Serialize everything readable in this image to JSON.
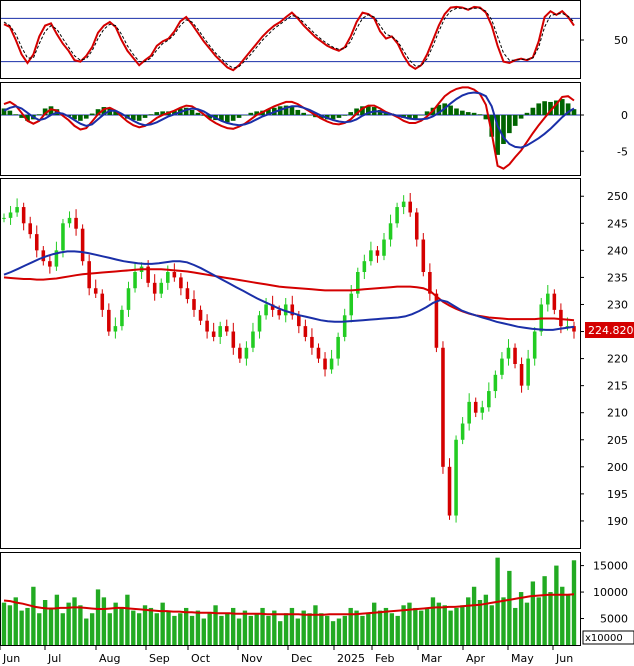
{
  "chart_data": [
    {
      "type": "line",
      "panel": "stochastic",
      "y_ticks": [
        "50"
      ],
      "ylim": [
        0,
        100
      ],
      "bands": [
        80,
        20
      ],
      "series": [
        {
          "color": "#d40000",
          "dash": false,
          "values": [
            72,
            68,
            50,
            30,
            18,
            30,
            55,
            70,
            73,
            58,
            45,
            35,
            22,
            20,
            28,
            40,
            60,
            70,
            75,
            68,
            50,
            35,
            25,
            15,
            22,
            28,
            42,
            48,
            52,
            62,
            76,
            82,
            72,
            60,
            48,
            38,
            28,
            20,
            12,
            8,
            15,
            25,
            35,
            45,
            55,
            63,
            70,
            75,
            82,
            88,
            80,
            70,
            62,
            54,
            48,
            42,
            38,
            35,
            40,
            55,
            75,
            88,
            86,
            80,
            62,
            52,
            55,
            45,
            28,
            15,
            10,
            15,
            30,
            50,
            70,
            86,
            95,
            96,
            95,
            92,
            96,
            95,
            88,
            70,
            42,
            20,
            18,
            22,
            24,
            22,
            26,
            48,
            82,
            90,
            85,
            90,
            82,
            70
          ]
        },
        {
          "color": "#000000",
          "dash": true,
          "values": [
            75,
            70,
            58,
            40,
            25,
            25,
            45,
            62,
            70,
            65,
            52,
            40,
            28,
            22,
            24,
            35,
            52,
            65,
            72,
            70,
            58,
            42,
            30,
            20,
            20,
            25,
            36,
            45,
            50,
            58,
            70,
            78,
            75,
            65,
            53,
            42,
            32,
            24,
            16,
            11,
            13,
            21,
            30,
            40,
            50,
            58,
            66,
            72,
            78,
            84,
            82,
            74,
            66,
            58,
            51,
            45,
            40,
            37,
            38,
            48,
            66,
            80,
            85,
            82,
            70,
            58,
            55,
            48,
            35,
            22,
            14,
            14,
            24,
            42,
            62,
            80,
            90,
            94,
            94,
            93,
            94,
            94,
            90,
            78,
            55,
            32,
            22,
            22,
            23,
            23,
            25,
            40,
            68,
            84,
            86,
            87,
            83,
            75
          ]
        }
      ]
    },
    {
      "type": "line",
      "panel": "macd",
      "y_ticks": [
        "0",
        "-5"
      ],
      "ylim": [
        -8,
        4
      ],
      "histogram": [
        0.9,
        0.6,
        0.1,
        -0.4,
        -0.8,
        -0.6,
        0.1,
        0.9,
        1.2,
        0.8,
        0.2,
        -0.2,
        -0.6,
        -0.8,
        -0.5,
        0.2,
        0.8,
        1.1,
        1.0,
        0.6,
        -0.1,
        -0.5,
        -0.7,
        -0.8,
        -0.4,
        0.1,
        0.4,
        0.5,
        0.5,
        0.6,
        0.9,
        1.0,
        0.7,
        0.3,
        -0.1,
        -0.5,
        -0.7,
        -0.8,
        -1.0,
        -0.8,
        -0.4,
        0.0,
        0.3,
        0.5,
        0.6,
        0.8,
        1.0,
        1.2,
        1.3,
        1.1,
        0.7,
        0.3,
        0.0,
        -0.3,
        -0.5,
        -0.6,
        -0.6,
        -0.4,
        -0.1,
        0.4,
        0.9,
        1.2,
        1.3,
        1.1,
        0.7,
        0.4,
        0.2,
        -0.1,
        -0.4,
        -0.6,
        -0.5,
        0.0,
        0.5,
        1.0,
        1.4,
        1.6,
        1.3,
        0.9,
        0.6,
        0.4,
        0.3,
        0.1,
        -0.6,
        -3.0,
        -5.5,
        -4.0,
        -2.5,
        -1.5,
        -0.5,
        0.3,
        1.0,
        1.6,
        1.9,
        1.8,
        2.0,
        2.2,
        1.6,
        0.8
      ],
      "series": [
        {
          "color": "#d40000",
          "values": [
            1.5,
            1.8,
            1.3,
            0.3,
            -0.8,
            -1.2,
            -0.8,
            0.2,
            0.8,
            0.6,
            -0.1,
            -0.7,
            -1.5,
            -2.0,
            -1.8,
            -0.9,
            0.1,
            0.8,
            1.0,
            0.6,
            -0.2,
            -0.9,
            -1.4,
            -1.7,
            -1.5,
            -1.0,
            -0.4,
            0.0,
            0.3,
            0.6,
            1.0,
            1.3,
            1.2,
            0.7,
            0.1,
            -0.6,
            -1.1,
            -1.5,
            -1.8,
            -1.9,
            -1.6,
            -1.2,
            -0.6,
            0.0,
            0.4,
            0.8,
            1.2,
            1.5,
            1.8,
            1.8,
            1.5,
            1.0,
            0.5,
            0.0,
            -0.5,
            -0.9,
            -1.2,
            -1.3,
            -1.1,
            -0.6,
            0.2,
            0.9,
            1.3,
            1.3,
            0.9,
            0.4,
            0.1,
            -0.3,
            -0.8,
            -1.1,
            -1.1,
            -0.8,
            -0.2,
            0.6,
            1.6,
            2.6,
            3.2,
            3.6,
            3.8,
            3.8,
            3.5,
            2.9,
            1.4,
            -2.5,
            -7.0,
            -7.4,
            -6.8,
            -5.8,
            -4.9,
            -3.7,
            -2.5,
            -1.4,
            -0.4,
            0.6,
            1.5,
            2.5,
            2.6,
            2.0
          ]
        },
        {
          "color": "#1a2fa8",
          "values": [
            0.6,
            1.0,
            1.2,
            0.9,
            0.3,
            -0.3,
            -0.7,
            -0.5,
            0.0,
            0.3,
            0.2,
            -0.2,
            -0.7,
            -1.2,
            -1.5,
            -1.3,
            -0.6,
            0.1,
            0.6,
            0.6,
            0.2,
            -0.3,
            -0.8,
            -1.2,
            -1.4,
            -1.3,
            -1.0,
            -0.6,
            -0.2,
            0.1,
            0.4,
            0.7,
            0.9,
            0.8,
            0.5,
            0.0,
            -0.4,
            -0.8,
            -1.1,
            -1.3,
            -1.4,
            -1.3,
            -1.0,
            -0.6,
            -0.2,
            0.1,
            0.4,
            0.7,
            1.0,
            1.2,
            1.2,
            1.0,
            0.7,
            0.3,
            -0.1,
            -0.4,
            -0.7,
            -0.9,
            -1.0,
            -0.9,
            -0.6,
            -0.1,
            0.3,
            0.5,
            0.5,
            0.3,
            0.1,
            -0.1,
            -0.3,
            -0.5,
            -0.6,
            -0.6,
            -0.5,
            -0.2,
            0.3,
            0.9,
            1.6,
            2.2,
            2.7,
            3.0,
            3.1,
            3.0,
            2.6,
            1.2,
            -1.5,
            -3.1,
            -4.0,
            -4.4,
            -4.5,
            -4.2,
            -3.7,
            -3.2,
            -2.6,
            -1.9,
            -1.1,
            -0.3,
            0.4,
            0.9
          ]
        }
      ]
    },
    {
      "type": "candlestick",
      "panel": "price",
      "y_ticks": [
        "250",
        "245",
        "240",
        "235",
        "230",
        "225",
        "220",
        "215",
        "210",
        "205",
        "200",
        "195",
        "190"
      ],
      "ylim": [
        185,
        253
      ],
      "last_price_label": "224.8200",
      "x_labels": [
        "Jun",
        "Jul",
        "Aug",
        "Sep",
        "Oct",
        "Nov",
        "Dec",
        "2025",
        "Feb",
        "Mar",
        "Apr",
        "May",
        "Jun"
      ],
      "close": [
        246,
        247,
        248,
        245,
        243,
        240,
        238,
        237,
        240,
        245,
        246,
        244,
        238,
        233,
        232,
        229,
        225,
        226,
        229,
        233,
        236,
        237,
        234,
        232,
        234,
        236,
        235,
        233,
        231,
        229,
        227,
        225,
        224,
        226,
        225,
        222,
        220,
        222,
        225,
        228,
        230,
        229,
        228,
        230,
        228,
        226,
        224,
        222,
        220,
        218,
        220,
        224,
        228,
        232,
        236,
        238,
        240,
        239,
        242,
        245,
        248,
        249,
        247,
        242,
        236,
        232,
        222,
        200,
        191,
        205,
        208,
        212,
        210,
        211,
        214,
        217,
        220,
        222,
        219,
        215,
        220,
        225,
        230,
        232,
        229,
        226,
        226,
        225
      ],
      "ma_red": [
        235,
        234.9,
        234.8,
        234.7,
        234.7,
        234.6,
        234.6,
        234.7,
        234.8,
        235,
        235.2,
        235.4,
        235.6,
        235.7,
        235.8,
        235.9,
        236,
        236.1,
        236.2,
        236.3,
        236.4,
        236.5,
        236.5,
        236.5,
        236.5,
        236.4,
        236.3,
        236.2,
        236.1,
        235.9,
        235.7,
        235.5,
        235.3,
        235.1,
        234.9,
        234.7,
        234.5,
        234.3,
        234.1,
        233.9,
        233.7,
        233.5,
        233.3,
        233.2,
        233.1,
        233.0,
        232.9,
        232.8,
        232.7,
        232.6,
        232.6,
        232.6,
        232.6,
        232.6,
        232.7,
        232.8,
        232.9,
        233,
        233.1,
        233.2,
        233.3,
        233.3,
        233.3,
        233.2,
        233,
        232.5,
        231.5,
        230.5,
        229.8,
        229.2,
        228.7,
        228.3,
        228,
        227.8,
        227.6,
        227.5,
        227.4,
        227.3,
        227.3,
        227.3,
        227.3,
        227.3,
        227.4,
        227.4,
        227.4,
        227.3,
        227.2,
        227.1
      ],
      "ma_blue": [
        235.5,
        236.0,
        236.6,
        237.2,
        237.8,
        238.4,
        238.9,
        239.3,
        239.6,
        239.8,
        239.8,
        239.7,
        239.5,
        239.2,
        238.9,
        238.6,
        238.3,
        238.0,
        237.8,
        237.6,
        237.5,
        237.5,
        237.6,
        237.8,
        238.0,
        238.0,
        237.8,
        237.3,
        236.7,
        236.0,
        235.3,
        234.6,
        233.9,
        233.2,
        232.5,
        231.8,
        231.1,
        230.5,
        229.9,
        229.3,
        228.8,
        228.4,
        228.0,
        227.7,
        227.4,
        227.1,
        226.9,
        226.8,
        226.8,
        226.9,
        227.0,
        227.1,
        227.2,
        227.3,
        227.4,
        227.5,
        227.6,
        227.8,
        228.2,
        228.8,
        229.5,
        230.3,
        230.8,
        230.5,
        229.7,
        228.9,
        228.4,
        228.0,
        227.6,
        227.2,
        226.8,
        226.5,
        226.2,
        225.9,
        225.7,
        225.5,
        225.4,
        225.3,
        225.3,
        225.5,
        225.7,
        225.9
      ]
    },
    {
      "type": "bar",
      "panel": "volume",
      "y_ticks": [
        "15000",
        "10000",
        "5000"
      ],
      "unit_label": "x10000",
      "ylim": [
        0,
        17000
      ],
      "values": [
        8000,
        7500,
        9000,
        6500,
        7000,
        11000,
        6000,
        8500,
        7000,
        9500,
        6000,
        8000,
        9000,
        7500,
        5000,
        6000,
        10500,
        9000,
        6000,
        8000,
        7000,
        9500,
        6500,
        6000,
        7500,
        7000,
        6000,
        8000,
        6500,
        5500,
        6000,
        7000,
        5500,
        6500,
        5000,
        6000,
        7500,
        5500,
        6000,
        7000,
        5000,
        6500,
        5500,
        6000,
        7000,
        5500,
        6500,
        4500,
        6000,
        7000,
        5000,
        6500,
        6000,
        7500,
        6000,
        5500,
        4500,
        5000,
        5500,
        7000,
        6500,
        5500,
        6000,
        8000,
        6500,
        7000,
        6000,
        5500,
        7500,
        8000,
        7000,
        6500,
        7000,
        9000,
        8000,
        7500,
        6500,
        7000,
        7500,
        9000,
        11000,
        8500,
        9500,
        7500,
        16500,
        9000,
        14000,
        7000,
        10000,
        8000,
        12000,
        9000,
        13000,
        10000,
        15000,
        11000,
        9500,
        16000
      ],
      "ma": [
        8400,
        8300,
        8000,
        7800,
        7500,
        7200,
        7000,
        6900,
        6900,
        7000,
        7000,
        7100,
        7100,
        7000,
        6900,
        6800,
        6800,
        6900,
        7000,
        7000,
        6900,
        6800,
        6700,
        6600,
        6500,
        6400,
        6400,
        6300,
        6300,
        6200,
        6200,
        6100,
        6100,
        6100,
        6000,
        6000,
        6000,
        5900,
        5900,
        5900,
        5900,
        5900,
        5800,
        5800,
        5800,
        5800,
        5800,
        5800,
        5700,
        5700,
        5700,
        5700,
        5800,
        5800,
        5800,
        5800,
        5800,
        5900,
        6000,
        6100,
        6200,
        6300,
        6400,
        6500,
        6600,
        6700,
        6800,
        6900,
        7000,
        7100,
        7100,
        7200,
        7200,
        7300,
        7400,
        7500,
        7600,
        7800,
        8000,
        8200,
        8400,
        8600,
        8800,
        9000,
        9200,
        9300,
        9400,
        9500,
        9500,
        9500,
        9500,
        9600
      ]
    }
  ]
}
